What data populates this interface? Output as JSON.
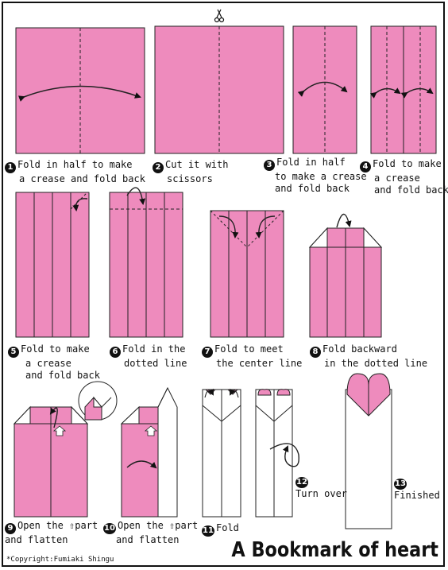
{
  "title": "A Bookmark of heart",
  "copyright": "*Copyright:Fumiaki Shingu",
  "colors": {
    "paper": "#ee8bbd",
    "outline": "#222222",
    "back": "#ffffff"
  },
  "steps": [
    {
      "number": "1",
      "lines": [
        "Fold in half to make",
        "a crease and fold back"
      ]
    },
    {
      "number": "2",
      "lines": [
        "Cut it with",
        "scissors"
      ]
    },
    {
      "number": "3",
      "lines": [
        "Fold in half",
        "to make a crease",
        "and fold back"
      ]
    },
    {
      "number": "4",
      "lines": [
        "Fold to make",
        "a crease",
        "and fold back"
      ]
    },
    {
      "number": "5",
      "lines": [
        "Fold to make",
        "a crease",
        "and fold back"
      ]
    },
    {
      "number": "6",
      "lines": [
        "Fold in the",
        "dotted line"
      ]
    },
    {
      "number": "7",
      "lines": [
        "Fold to meet",
        "the center line"
      ]
    },
    {
      "number": "8",
      "lines": [
        "Fold backward",
        "in the dotted line"
      ]
    },
    {
      "number": "9",
      "lines": [
        "Open the",
        "part",
        "and flatten"
      ]
    },
    {
      "number": "10",
      "lines": [
        "Open the",
        "part",
        "and flatten"
      ]
    },
    {
      "number": "11",
      "lines": [
        "Fold"
      ]
    },
    {
      "number": "12",
      "lines": [
        "Turn over"
      ]
    },
    {
      "number": "13",
      "lines": [
        "Finished"
      ]
    }
  ]
}
